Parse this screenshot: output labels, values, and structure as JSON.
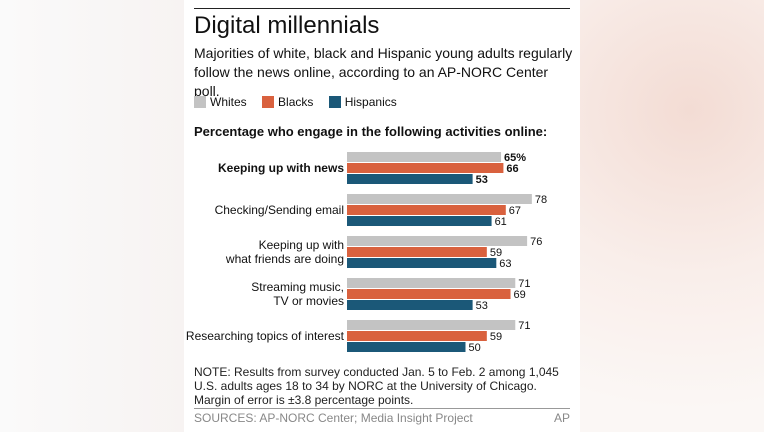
{
  "title": "Digital millennials",
  "subtitle": "Majorities of white, black and Hispanic young adults regularly follow the news online, according to an AP-NORC Center poll.",
  "chart_heading": "Percentage who engage in the following activities online:",
  "note": "NOTE: Results from survey conducted Jan. 5 to Feb. 2 among 1,045 U.S. adults ages 18 to 34 by NORC at the University of Chicago. Margin of error is ±3.8 percentage points.",
  "sources": "SOURCES: AP-NORC Center; Media Insight Project",
  "credit": "AP",
  "colors": {
    "whites": "#c3c3c3",
    "blacks": "#d9613e",
    "hispanics": "#1b5878"
  },
  "chart_data": {
    "type": "bar",
    "orientation": "horizontal",
    "categories": [
      [
        "Keeping up with news"
      ],
      [
        "Checking/Sending email"
      ],
      [
        "Keeping up with",
        "what friends are doing"
      ],
      [
        "Streaming music,",
        "TV or movies"
      ],
      [
        "Researching topics of interest"
      ]
    ],
    "series": [
      {
        "name": "Whites",
        "values": [
          65,
          78,
          76,
          71,
          71
        ],
        "labels": [
          "65%",
          "78",
          "76",
          "71",
          "71"
        ]
      },
      {
        "name": "Blacks",
        "values": [
          66,
          67,
          59,
          69,
          59
        ],
        "labels": [
          "66",
          "67",
          "59",
          "69",
          "59"
        ]
      },
      {
        "name": "Hispanics",
        "values": [
          53,
          61,
          63,
          53,
          50
        ],
        "labels": [
          "53",
          "61",
          "63",
          "53",
          "50"
        ]
      }
    ],
    "bold_categories": [
      0
    ],
    "xlim": [
      0,
      100
    ],
    "legend": "top-left",
    "grid": false
  }
}
